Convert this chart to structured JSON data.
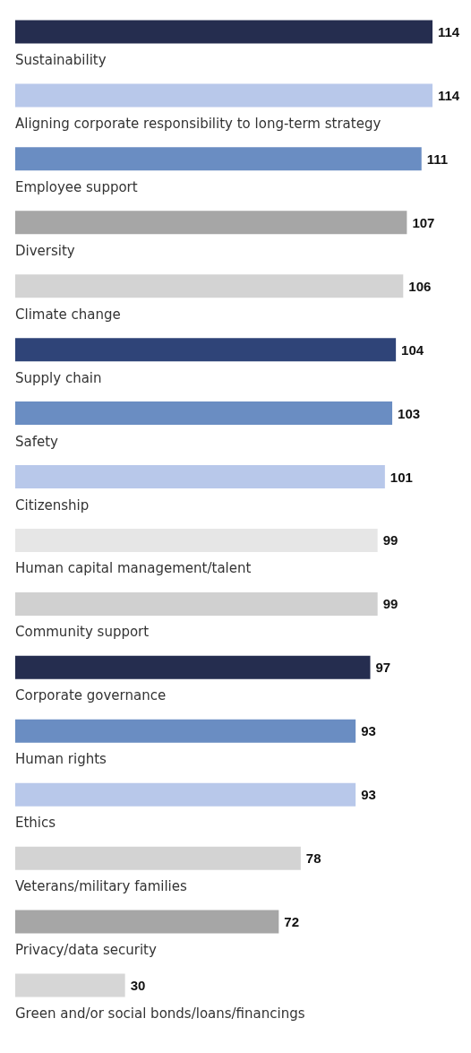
{
  "chart_data": {
    "type": "bar",
    "orientation": "horizontal",
    "data_labels": true,
    "categories": [
      "Sustainability",
      "Aligning corporate responsibility to long-term strategy",
      "Employee support",
      "Diversity",
      "Climate change",
      "Supply chain",
      "Safety",
      "Citizenship",
      "Human capital management/talent",
      "Community support",
      "Corporate governance",
      "Human rights",
      "Ethics",
      "Veterans/military families",
      "Privacy/data security",
      "Green and/or social bonds/loans/financings"
    ],
    "values": [
      114,
      114,
      111,
      107,
      106,
      104,
      103,
      101,
      99,
      99,
      97,
      93,
      93,
      78,
      72,
      30
    ],
    "colors": [
      "#252d4f",
      "#b8c8ea",
      "#6a8dc2",
      "#a6a6a6",
      "#d3d3d3",
      "#2f4478",
      "#6a8dc2",
      "#b8c8ea",
      "#e6e6e6",
      "#d0d0d0",
      "#252d4f",
      "#6a8dc2",
      "#b8c8ea",
      "#d3d3d3",
      "#a6a6a6",
      "#d6d6d6"
    ]
  }
}
